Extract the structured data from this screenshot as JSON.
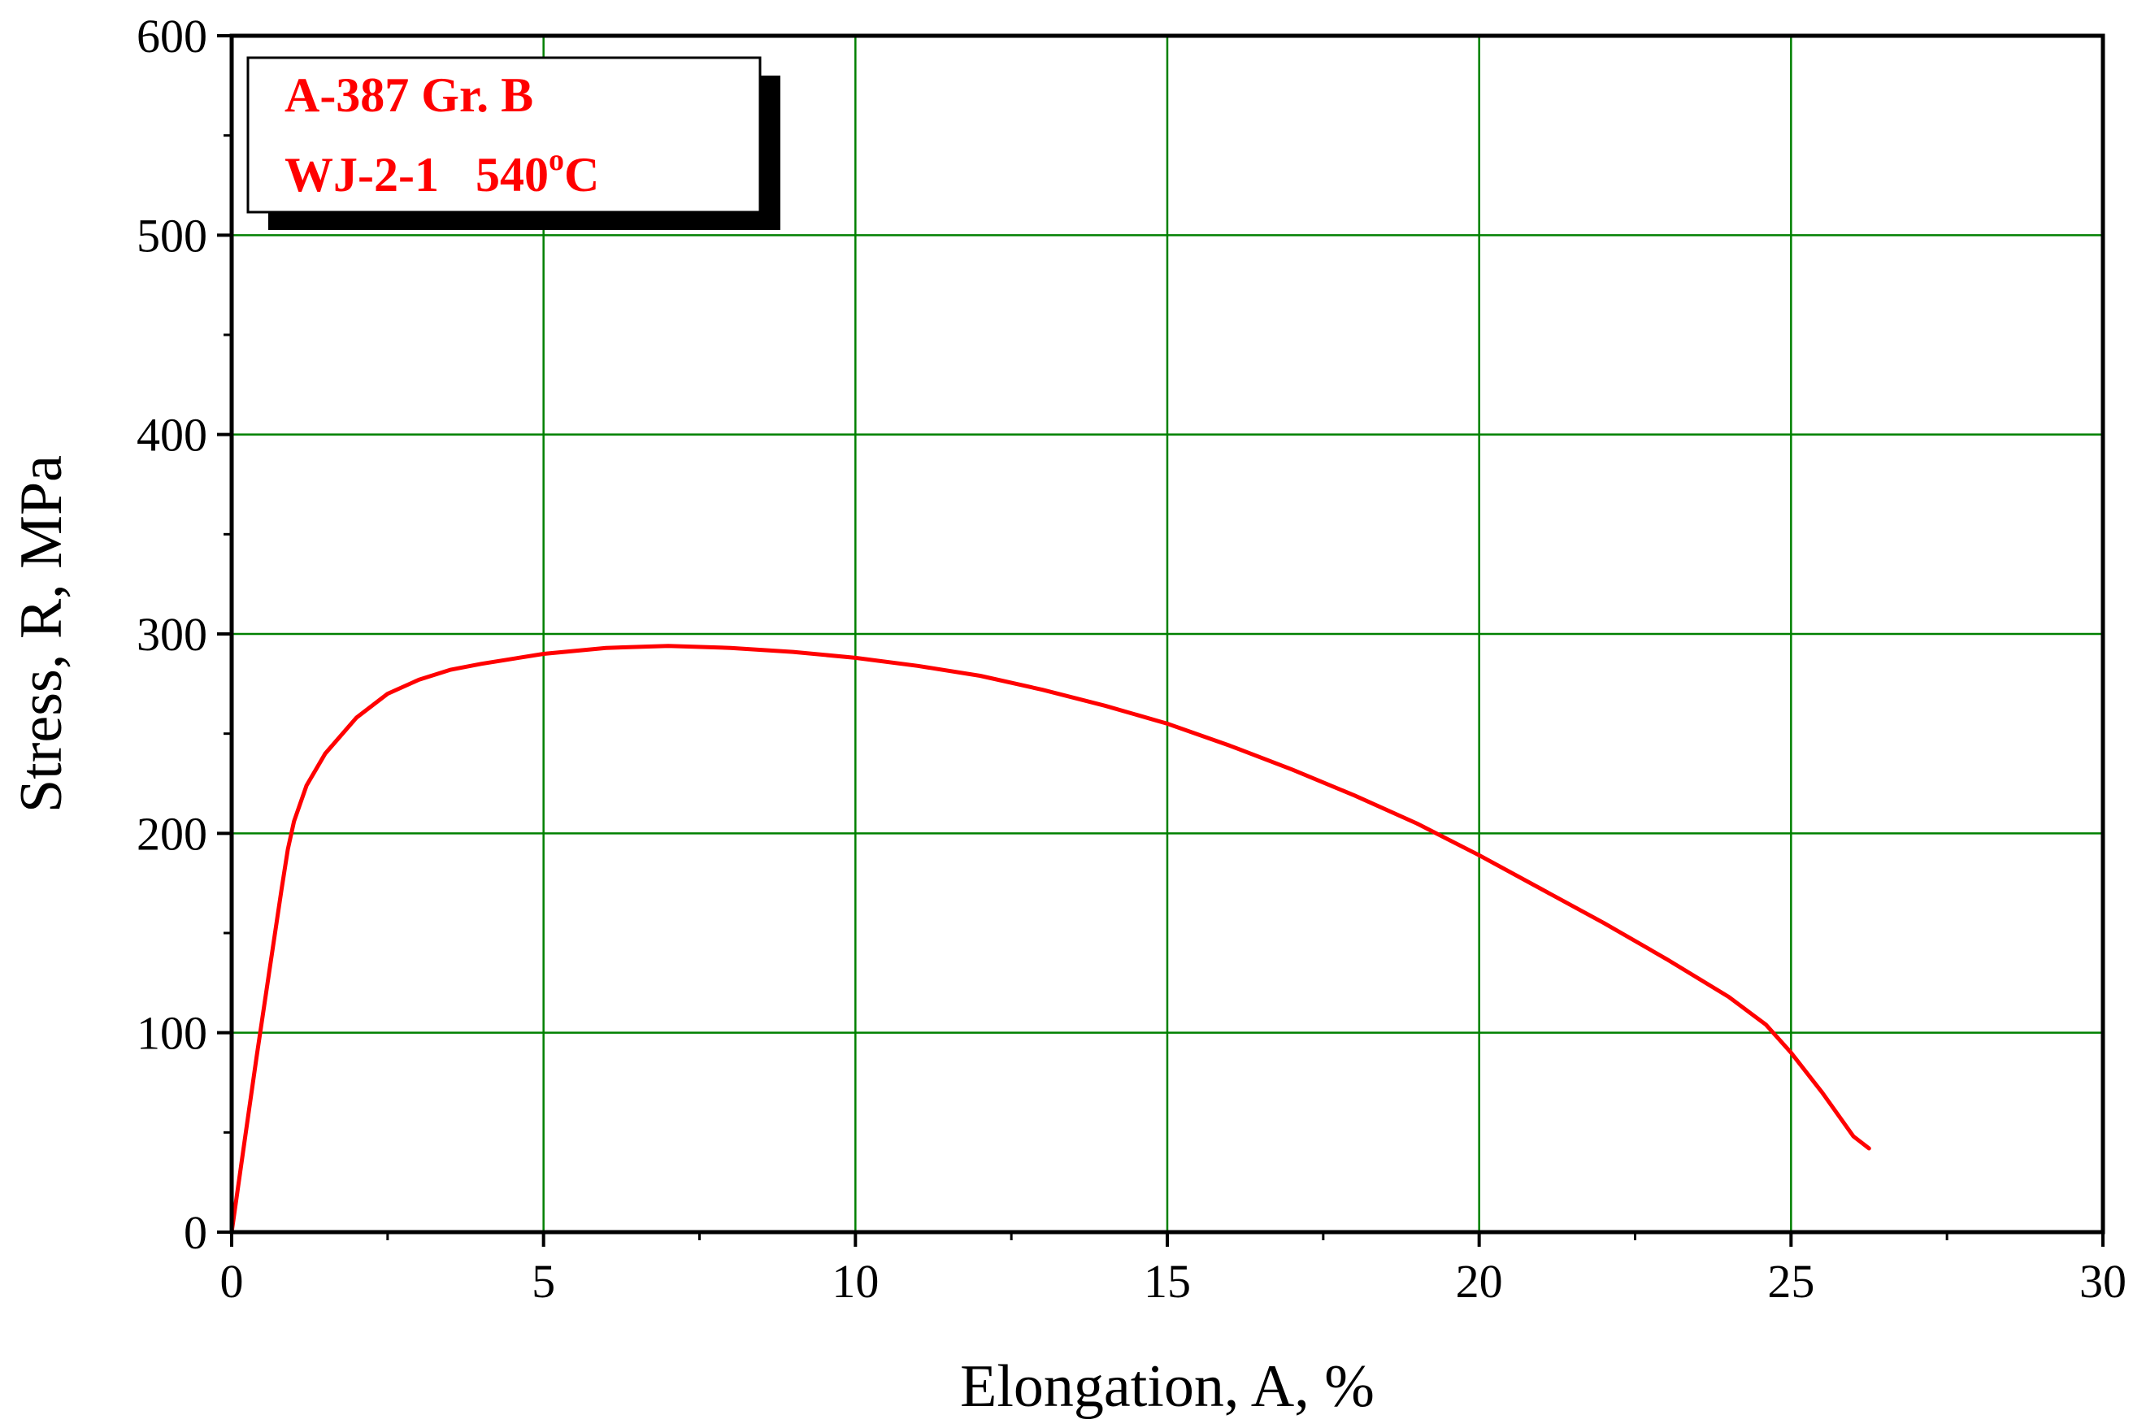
{
  "chart_data": {
    "type": "line",
    "title": "",
    "xlabel": "Elongation,  A, %",
    "ylabel": "Stress,  R, MPa",
    "xlim": [
      0,
      30
    ],
    "ylim": [
      0,
      600
    ],
    "x_ticks": [
      "0",
      "5",
      "10",
      "15",
      "20",
      "25",
      "30"
    ],
    "y_ticks": [
      "0",
      "100",
      "200",
      "300",
      "400",
      "500",
      "600"
    ],
    "grid": true,
    "legend_position": "top-left",
    "legend": {
      "line1": "A-387 Gr. B",
      "line2_main": "WJ-2-1   540",
      "line2_sup": "o",
      "line2_end": "C"
    },
    "colors": {
      "series": "#ff0000",
      "grid": "#008000",
      "axis": "#000000",
      "legend_text": "#ff0000"
    },
    "series": [
      {
        "x": [
          0,
          0.2,
          0.4,
          0.6,
          0.8,
          0.9,
          1.0,
          1.2,
          1.5,
          2.0,
          2.5,
          3.0,
          3.5,
          4.0,
          5.0,
          6.0,
          7.0,
          8.0,
          9.0,
          10.0,
          11.0,
          12.0,
          13.0,
          14.0,
          15.0,
          16.0,
          17.0,
          18.0,
          19.0,
          20.0,
          21.0,
          22.0,
          23.0,
          24.0,
          24.6,
          25.0,
          25.5,
          26.0,
          26.25
        ],
        "y": [
          0,
          44,
          88,
          130,
          172,
          192,
          206,
          224,
          240,
          258,
          270,
          277,
          282,
          285,
          290,
          293,
          294,
          293,
          291,
          288,
          284,
          279,
          272,
          264,
          255,
          244,
          232,
          219,
          205,
          189,
          172,
          155,
          137,
          118,
          104,
          90,
          70,
          48,
          42
        ]
      }
    ]
  }
}
